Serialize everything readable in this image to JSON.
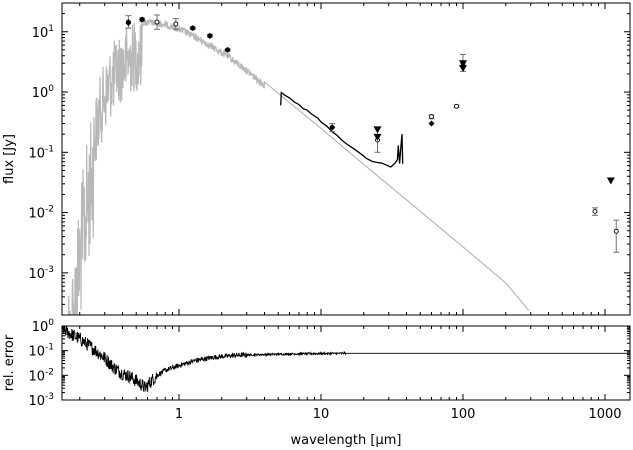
{
  "chart_data": [
    {
      "type": "scatter",
      "panel": "top",
      "xlabel": "wavelength [μm]",
      "ylabel": "flux [Jy]",
      "xscale": "log",
      "yscale": "log",
      "xlim": [
        0.15,
        1500
      ],
      "ylim": [
        0.0002,
        30
      ],
      "x_ticks": [
        1,
        10,
        100,
        1000
      ],
      "x_tick_labels": [
        "1",
        "10",
        "100",
        "1000"
      ],
      "y_ticks": [
        0.001,
        0.01,
        0.1,
        1,
        10
      ],
      "y_tick_labels": [
        {
          "base": "10",
          "exp": "-3"
        },
        {
          "base": "10",
          "exp": "-2"
        },
        {
          "base": "10",
          "exp": "-1"
        },
        {
          "base": "10",
          "exp": "0"
        },
        {
          "base": "10",
          "exp": "1"
        }
      ],
      "model_color": "#b8b8b8",
      "model_envelope": [
        [
          0.15,
          0.00025
        ],
        [
          0.16,
          0.0004
        ],
        [
          0.18,
          0.002
        ],
        [
          0.2,
          0.02
        ],
        [
          0.22,
          0.12
        ],
        [
          0.25,
          0.6
        ],
        [
          0.28,
          2.0
        ],
        [
          0.32,
          5.0
        ],
        [
          0.37,
          9.0
        ],
        [
          0.43,
          13.0
        ],
        [
          0.5,
          16.0
        ],
        [
          0.6,
          16.5
        ],
        [
          0.75,
          15.5
        ],
        [
          0.9,
          14.0
        ],
        [
          1.1,
          11.5
        ],
        [
          1.4,
          8.5
        ],
        [
          1.8,
          6.0
        ],
        [
          2.2,
          4.5
        ],
        [
          3.0,
          2.6
        ],
        [
          5.0,
          0.95
        ],
        [
          10,
          0.25
        ],
        [
          20,
          0.063
        ],
        [
          50,
          0.0105
        ],
        [
          100,
          0.0027
        ],
        [
          200,
          0.00068
        ],
        [
          290,
          0.00024
        ]
      ],
      "series": [
        {
          "marker": "spectrum-line",
          "points": [
            [
              5.2,
              0.6
            ],
            [
              5.25,
              0.98
            ],
            [
              5.6,
              0.88
            ],
            [
              6,
              0.8
            ],
            [
              6.5,
              0.68
            ],
            [
              7,
              0.62
            ],
            [
              7.5,
              0.53
            ],
            [
              8,
              0.5
            ],
            [
              8.5,
              0.44
            ],
            [
              9,
              0.4
            ],
            [
              9.5,
              0.37
            ],
            [
              10,
              0.32
            ],
            [
              11,
              0.27
            ],
            [
              12,
              0.22
            ],
            [
              13,
              0.19
            ],
            [
              14,
              0.16
            ],
            [
              15,
              0.14
            ],
            [
              17,
              0.115
            ],
            [
              19,
              0.095
            ],
            [
              21,
              0.082
            ],
            [
              23,
              0.072
            ],
            [
              25,
              0.066
            ],
            [
              27,
              0.062
            ],
            [
              29,
              0.06
            ],
            [
              31,
              0.058
            ],
            [
              33,
              0.065
            ],
            [
              34.5,
              0.075
            ],
            [
              35,
              0.13
            ],
            [
              35.8,
              0.065
            ],
            [
              36.5,
              0.12
            ],
            [
              37.2,
              0.2
            ],
            [
              37.6,
              0.065
            ]
          ]
        },
        {
          "marker": "circle-errorbar",
          "points": [
            {
              "x": 0.44,
              "y": 14.5,
              "lo": 11.5,
              "hi": 18.5
            },
            {
              "x": 0.55,
              "y": 16.0,
              "lo": 15.0,
              "hi": 17.0
            },
            {
              "x": 0.7,
              "y": 14.5,
              "lo": 11.0,
              "hi": 19.0
            },
            {
              "x": 0.95,
              "y": 13.5,
              "lo": 11.0,
              "hi": 16.5
            },
            {
              "x": 1.25,
              "y": 11.5,
              "lo": 11.0,
              "hi": 12.0
            },
            {
              "x": 1.65,
              "y": 8.6,
              "lo": 8.2,
              "hi": 9.0
            },
            {
              "x": 2.2,
              "y": 5.0,
              "lo": 4.8,
              "hi": 5.2
            },
            {
              "x": 12,
              "y": 0.26,
              "lo": 0.22,
              "hi": 0.3
            },
            {
              "x": 25,
              "y": 0.16,
              "lo": 0.1,
              "hi": 0.26
            },
            {
              "x": 60,
              "y": 0.39,
              "lo": 0.36,
              "hi": 0.42
            },
            {
              "x": 100,
              "y": 3.0,
              "lo": 2.2,
              "hi": 4.2
            },
            {
              "x": 90,
              "y": 0.58,
              "lo": 0.55,
              "hi": 0.61
            },
            {
              "x": 850,
              "y": 0.0105,
              "lo": 0.009,
              "hi": 0.012
            },
            {
              "x": 1200,
              "y": 0.0049,
              "lo": 0.0022,
              "hi": 0.0075
            }
          ]
        },
        {
          "marker": "filled-diamond",
          "points": [
            {
              "x": 0.44,
              "y": 14.0
            },
            {
              "x": 0.55,
              "y": 16.0
            },
            {
              "x": 1.25,
              "y": 11.5
            },
            {
              "x": 1.65,
              "y": 8.5
            },
            {
              "x": 2.2,
              "y": 5.0
            },
            {
              "x": 12,
              "y": 0.26
            },
            {
              "x": 60,
              "y": 0.3
            }
          ]
        },
        {
          "marker": "upper-limit-triangle",
          "points": [
            {
              "x": 25,
              "y": 0.24
            },
            {
              "x": 25,
              "y": 0.18
            },
            {
              "x": 100,
              "y": 3.0
            },
            {
              "x": 100,
              "y": 2.5
            },
            {
              "x": 1100,
              "y": 0.034
            }
          ]
        }
      ]
    },
    {
      "type": "line",
      "panel": "bottom",
      "xlabel": "wavelength [μm]",
      "ylabel": "rel. error",
      "xscale": "log",
      "yscale": "log",
      "xlim": [
        0.15,
        1500
      ],
      "ylim": [
        0.001,
        1
      ],
      "y_ticks": [
        0.001,
        0.01,
        0.1,
        1
      ],
      "y_tick_labels": [
        {
          "base": "10",
          "exp": "-3"
        },
        {
          "base": "10",
          "exp": "-2"
        },
        {
          "base": "10",
          "exp": "-1"
        },
        {
          "base": "10",
          "exp": "0"
        }
      ],
      "series": [
        {
          "points": [
            [
              0.15,
              0.8
            ],
            [
              0.17,
              0.5
            ],
            [
              0.2,
              0.3
            ],
            [
              0.25,
              0.12
            ],
            [
              0.3,
              0.05
            ],
            [
              0.35,
              0.02
            ],
            [
              0.4,
              0.012
            ],
            [
              0.45,
              0.009
            ],
            [
              0.5,
              0.006
            ],
            [
              0.55,
              0.004
            ],
            [
              0.58,
              0.003
            ],
            [
              0.62,
              0.005
            ],
            [
              0.7,
              0.01
            ],
            [
              0.8,
              0.016
            ],
            [
              1.0,
              0.025
            ],
            [
              1.3,
              0.04
            ],
            [
              1.8,
              0.055
            ],
            [
              2.5,
              0.065
            ],
            [
              4,
              0.07
            ],
            [
              7,
              0.075
            ],
            [
              15,
              0.078
            ],
            [
              1500,
              0.078
            ]
          ]
        }
      ]
    }
  ]
}
